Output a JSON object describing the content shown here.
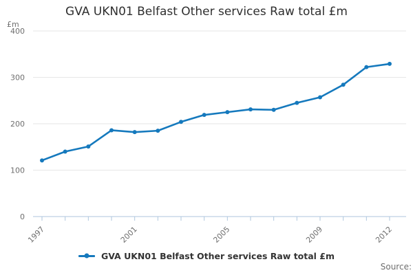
{
  "chart_data": {
    "type": "line",
    "title": "GVA UKN01 Belfast Other services Raw total £m",
    "unit_label": "£m",
    "series_name": "GVA UKN01 Belfast Other services Raw total £m",
    "x": [
      1997,
      1998,
      1999,
      2000,
      2001,
      2002,
      2003,
      2004,
      2005,
      2006,
      2007,
      2008,
      2009,
      2010,
      2011,
      2012
    ],
    "values": [
      121,
      140,
      151,
      186,
      182,
      185,
      204,
      219,
      225,
      231,
      230,
      245,
      257,
      284,
      322,
      329
    ],
    "ylim": [
      0,
      400
    ],
    "yticks": [
      0,
      100,
      200,
      300,
      400
    ],
    "xtick_labels": [
      "1997",
      "2001",
      "2005",
      "2009",
      "2012"
    ],
    "grid": "horizontal",
    "legend_position": "bottom",
    "line_color": "#1579bd",
    "grid_color": "#e6e6e6",
    "axis_color": "#aec6de",
    "text_color": "#6e6e6e",
    "title_color": "#2f2f2f"
  },
  "footer": {
    "source_label": "Source:"
  }
}
